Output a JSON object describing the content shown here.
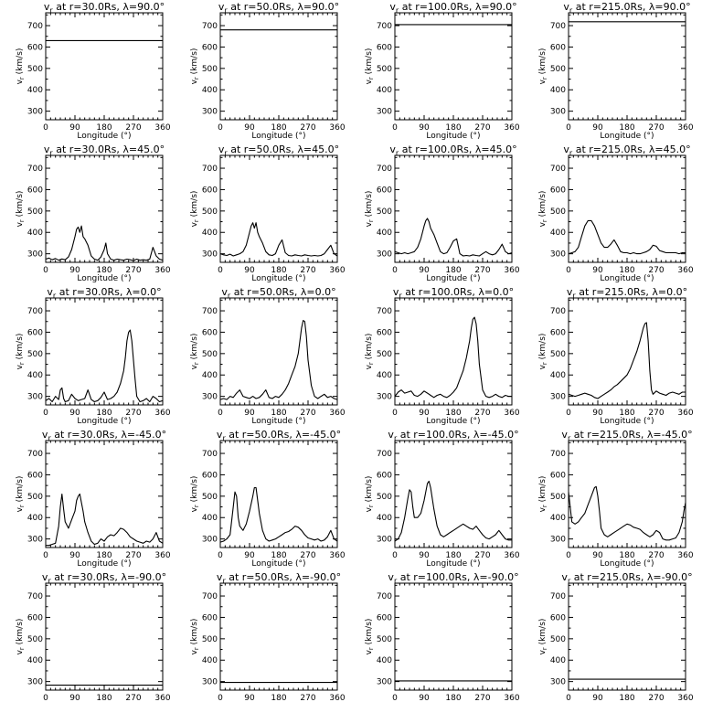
{
  "figure": {
    "row_latitudes": [
      "90.0",
      "45.0",
      "0.0",
      "-45.0",
      "-90.0"
    ],
    "col_radii": [
      "30.0",
      "50.0",
      "100.0",
      "215.0"
    ]
  },
  "chart_data": {
    "type": "line",
    "grid": false,
    "xlabel": "Longitude (°)",
    "ylabel": "v_r (km/s)",
    "xlim": [
      0,
      360
    ],
    "ylim": [
      260,
      760
    ],
    "xticks": [
      0,
      90,
      180,
      270,
      360
    ],
    "yticks": [
      300,
      400,
      500,
      600,
      700
    ],
    "panels": [
      {
        "title": "v_r at r=30.0Rs, λ=90.0°",
        "x": [
          0,
          360
        ],
        "y": [
          630,
          630
        ]
      },
      {
        "title": "v_r at r=50.0Rs, λ=90.0°",
        "x": [
          0,
          360
        ],
        "y": [
          680,
          680
        ]
      },
      {
        "title": "v_r at r=100.0Rs, λ=90.0°",
        "x": [
          0,
          360
        ],
        "y": [
          705,
          705
        ]
      },
      {
        "title": "v_r at r=215.0Rs, λ=90.0°",
        "x": [
          0,
          360
        ],
        "y": [
          718,
          718
        ]
      },
      {
        "title": "v_r at r=30.0Rs, λ=45.0°",
        "x": [
          0,
          10,
          20,
          30,
          40,
          50,
          60,
          70,
          80,
          90,
          95,
          100,
          105,
          110,
          115,
          120,
          130,
          140,
          150,
          160,
          170,
          180,
          185,
          190,
          200,
          210,
          220,
          230,
          240,
          250,
          260,
          270,
          280,
          290,
          300,
          310,
          320,
          330,
          340,
          350,
          360
        ],
        "y": [
          275,
          280,
          272,
          278,
          270,
          276,
          272,
          285,
          320,
          380,
          415,
          425,
          400,
          430,
          380,
          370,
          340,
          290,
          275,
          270,
          285,
          320,
          350,
          300,
          275,
          270,
          275,
          272,
          270,
          275,
          272,
          268,
          275,
          270,
          272,
          270,
          275,
          330,
          290,
          275,
          270
        ]
      },
      {
        "title": "v_r at r=50.0Rs, λ=45.0°",
        "x": [
          0,
          10,
          20,
          30,
          40,
          50,
          60,
          70,
          80,
          90,
          95,
          100,
          105,
          110,
          115,
          120,
          130,
          140,
          150,
          160,
          170,
          180,
          190,
          200,
          210,
          220,
          230,
          240,
          250,
          260,
          270,
          280,
          290,
          300,
          310,
          320,
          330,
          340,
          350,
          360
        ],
        "y": [
          300,
          295,
          292,
          298,
          290,
          295,
          300,
          310,
          340,
          400,
          430,
          445,
          420,
          445,
          400,
          380,
          350,
          310,
          295,
          292,
          300,
          340,
          365,
          305,
          292,
          290,
          295,
          292,
          290,
          295,
          292,
          290,
          292,
          290,
          292,
          300,
          320,
          340,
          300,
          290
        ]
      },
      {
        "title": "v_r at r=100.0Rs, λ=45.0°",
        "x": [
          0,
          10,
          20,
          30,
          40,
          50,
          60,
          70,
          80,
          90,
          95,
          100,
          105,
          110,
          120,
          130,
          140,
          150,
          160,
          170,
          180,
          190,
          200,
          210,
          220,
          230,
          240,
          250,
          260,
          270,
          280,
          290,
          300,
          310,
          320,
          330,
          340,
          350,
          360
        ],
        "y": [
          310,
          305,
          300,
          305,
          300,
          305,
          310,
          330,
          370,
          430,
          455,
          465,
          450,
          420,
          390,
          350,
          310,
          300,
          305,
          330,
          360,
          370,
          300,
          290,
          292,
          290,
          295,
          292,
          290,
          300,
          310,
          300,
          295,
          300,
          320,
          345,
          310,
          300,
          305
        ]
      },
      {
        "title": "v_r at r=215.0Rs, λ=45.0°",
        "x": [
          0,
          10,
          20,
          30,
          40,
          50,
          60,
          70,
          80,
          90,
          100,
          110,
          120,
          130,
          140,
          150,
          160,
          170,
          180,
          190,
          200,
          210,
          220,
          230,
          240,
          250,
          260,
          270,
          280,
          290,
          300,
          310,
          320,
          330,
          340,
          350,
          360
        ],
        "y": [
          300,
          305,
          310,
          330,
          380,
          430,
          455,
          455,
          430,
          390,
          350,
          330,
          330,
          345,
          365,
          340,
          310,
          305,
          305,
          300,
          305,
          300,
          300,
          305,
          310,
          320,
          340,
          335,
          315,
          310,
          305,
          305,
          305,
          305,
          300,
          305,
          305
        ]
      },
      {
        "title": "v_r at r=30.0Rs, λ=0.0°",
        "x": [
          0,
          10,
          20,
          30,
          40,
          45,
          50,
          55,
          60,
          70,
          80,
          90,
          100,
          110,
          120,
          130,
          140,
          150,
          160,
          170,
          180,
          190,
          200,
          210,
          220,
          230,
          240,
          245,
          250,
          255,
          260,
          265,
          270,
          275,
          280,
          290,
          300,
          310,
          320,
          330,
          340,
          350,
          360
        ],
        "y": [
          280,
          290,
          275,
          300,
          285,
          330,
          340,
          290,
          275,
          280,
          310,
          290,
          280,
          285,
          290,
          330,
          285,
          275,
          280,
          295,
          320,
          285,
          290,
          300,
          320,
          360,
          420,
          480,
          560,
          600,
          610,
          560,
          470,
          380,
          300,
          275,
          280,
          290,
          275,
          300,
          290,
          275,
          280
        ]
      },
      {
        "title": "v_r at r=50.0Rs, λ=0.0°",
        "x": [
          0,
          10,
          20,
          30,
          40,
          50,
          60,
          70,
          80,
          90,
          100,
          110,
          120,
          130,
          140,
          150,
          160,
          170,
          180,
          190,
          200,
          210,
          220,
          230,
          240,
          245,
          250,
          255,
          260,
          265,
          270,
          280,
          290,
          300,
          310,
          320,
          330,
          340,
          350,
          360
        ],
        "y": [
          285,
          290,
          285,
          300,
          295,
          315,
          330,
          300,
          295,
          290,
          300,
          290,
          295,
          310,
          330,
          295,
          290,
          300,
          295,
          310,
          330,
          360,
          400,
          440,
          500,
          560,
          620,
          655,
          650,
          580,
          470,
          350,
          300,
          290,
          300,
          310,
          295,
          300,
          290,
          285
        ]
      },
      {
        "title": "v_r at r=100.0Rs, λ=0.0°",
        "x": [
          0,
          10,
          20,
          30,
          40,
          50,
          60,
          70,
          80,
          90,
          100,
          110,
          120,
          130,
          140,
          150,
          160,
          170,
          180,
          190,
          200,
          210,
          220,
          230,
          235,
          240,
          245,
          250,
          255,
          260,
          270,
          280,
          290,
          300,
          310,
          320,
          330,
          340,
          350,
          360
        ],
        "y": [
          300,
          320,
          330,
          315,
          320,
          325,
          305,
          300,
          310,
          325,
          315,
          305,
          295,
          305,
          310,
          300,
          295,
          305,
          320,
          340,
          380,
          420,
          480,
          560,
          620,
          660,
          670,
          640,
          560,
          450,
          330,
          300,
          295,
          300,
          310,
          300,
          295,
          305,
          300,
          300
        ]
      },
      {
        "title": "v_r at r=215.0Rs, λ=0.0°",
        "x": [
          0,
          10,
          20,
          30,
          40,
          50,
          60,
          70,
          80,
          90,
          100,
          110,
          120,
          130,
          140,
          150,
          160,
          170,
          180,
          190,
          200,
          210,
          220,
          230,
          235,
          240,
          245,
          250,
          255,
          260,
          270,
          280,
          290,
          300,
          310,
          320,
          330,
          340,
          350,
          360
        ],
        "y": [
          310,
          305,
          300,
          305,
          310,
          315,
          310,
          305,
          295,
          290,
          300,
          310,
          320,
          330,
          345,
          355,
          370,
          385,
          400,
          430,
          470,
          510,
          560,
          620,
          640,
          645,
          560,
          420,
          330,
          310,
          325,
          315,
          310,
          305,
          315,
          320,
          315,
          310,
          320,
          320
        ]
      },
      {
        "title": "v_r at r=30.0Rs, λ=-45.0°",
        "x": [
          0,
          10,
          20,
          30,
          40,
          45,
          50,
          55,
          60,
          70,
          80,
          90,
          95,
          100,
          105,
          110,
          115,
          120,
          130,
          140,
          150,
          160,
          170,
          180,
          190,
          200,
          210,
          220,
          230,
          240,
          250,
          260,
          270,
          280,
          290,
          300,
          310,
          320,
          330,
          340,
          350,
          360
        ],
        "y": [
          270,
          270,
          275,
          280,
          360,
          450,
          510,
          440,
          380,
          350,
          390,
          430,
          480,
          500,
          510,
          470,
          430,
          380,
          330,
          290,
          275,
          280,
          300,
          290,
          310,
          320,
          315,
          330,
          350,
          345,
          330,
          310,
          300,
          290,
          285,
          280,
          290,
          285,
          300,
          330,
          290,
          280
        ]
      },
      {
        "title": "v_r at r=50.0Rs, λ=-45.0°",
        "x": [
          0,
          10,
          20,
          30,
          40,
          45,
          50,
          55,
          60,
          70,
          80,
          90,
          100,
          105,
          110,
          115,
          120,
          130,
          140,
          150,
          160,
          170,
          180,
          190,
          200,
          210,
          220,
          230,
          240,
          250,
          260,
          270,
          280,
          290,
          300,
          310,
          320,
          330,
          340,
          350,
          360
        ],
        "y": [
          285,
          290,
          300,
          320,
          450,
          520,
          500,
          400,
          360,
          340,
          370,
          430,
          500,
          540,
          540,
          480,
          420,
          340,
          300,
          290,
          295,
          300,
          310,
          320,
          330,
          335,
          345,
          360,
          355,
          340,
          320,
          305,
          300,
          295,
          300,
          290,
          295,
          310,
          340,
          300,
          290
        ]
      },
      {
        "title": "v_r at r=100.0Rs, λ=-45.0°",
        "x": [
          0,
          10,
          20,
          30,
          40,
          45,
          50,
          55,
          60,
          70,
          80,
          90,
          100,
          105,
          110,
          120,
          130,
          140,
          150,
          160,
          170,
          180,
          190,
          200,
          210,
          220,
          230,
          240,
          250,
          260,
          270,
          280,
          290,
          300,
          310,
          320,
          330,
          340,
          350,
          360
        ],
        "y": [
          290,
          300,
          330,
          400,
          490,
          530,
          520,
          450,
          400,
          400,
          420,
          480,
          560,
          570,
          540,
          440,
          360,
          320,
          310,
          320,
          330,
          340,
          350,
          360,
          370,
          360,
          350,
          345,
          360,
          340,
          320,
          305,
          300,
          310,
          320,
          340,
          320,
          300,
          295,
          295
        ]
      },
      {
        "title": "v_r at r=215.0Rs, λ=-45.0°",
        "x": [
          0,
          10,
          20,
          30,
          40,
          50,
          60,
          70,
          80,
          85,
          90,
          95,
          100,
          110,
          120,
          130,
          140,
          150,
          160,
          170,
          180,
          190,
          200,
          210,
          220,
          230,
          240,
          250,
          260,
          270,
          280,
          290,
          300,
          310,
          320,
          330,
          340,
          350,
          355,
          360
        ],
        "y": [
          520,
          380,
          370,
          380,
          400,
          420,
          460,
          500,
          540,
          545,
          500,
          430,
          350,
          320,
          310,
          320,
          330,
          340,
          350,
          360,
          370,
          365,
          355,
          350,
          345,
          330,
          320,
          310,
          320,
          340,
          330,
          300,
          295,
          295,
          300,
          305,
          330,
          380,
          430,
          470
        ]
      },
      {
        "title": "v_r at r=30.0Rs, λ=-90.0°",
        "x": [
          0,
          360
        ],
        "y": [
          283,
          283
        ]
      },
      {
        "title": "v_r at r=50.0Rs, λ=-90.0°",
        "x": [
          0,
          360
        ],
        "y": [
          296,
          296
        ]
      },
      {
        "title": "v_r at r=100.0Rs, λ=-90.0°",
        "x": [
          0,
          360
        ],
        "y": [
          303,
          303
        ]
      },
      {
        "title": "v_r at r=215.0Rs, λ=-90.0°",
        "x": [
          0,
          360
        ],
        "y": [
          311,
          311
        ]
      }
    ]
  }
}
